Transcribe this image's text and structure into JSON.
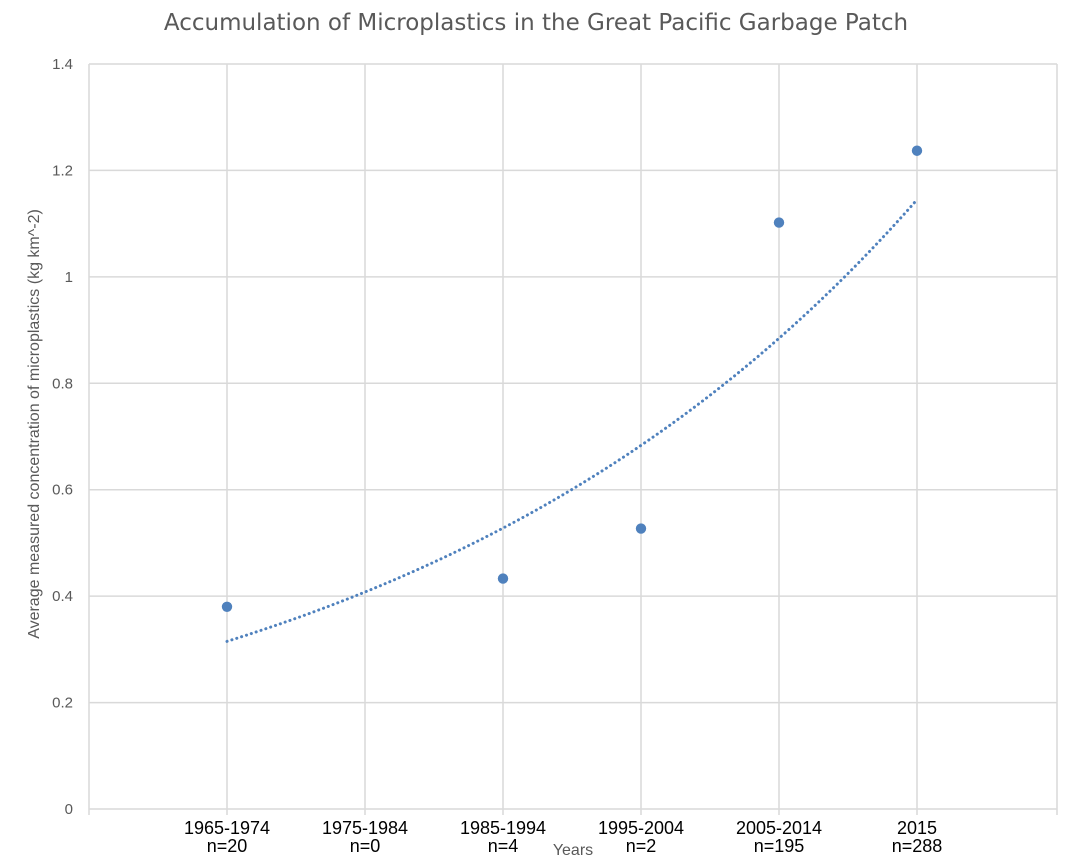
{
  "chart_data": {
    "type": "scatter",
    "title": "Accumulation of Microplastics in the Great Pacific Garbage Patch",
    "xlabel": "Years",
    "ylabel": "Average measured concentration of microplastics (kg km^-2)",
    "categories": [
      {
        "label": "1965-1974",
        "n": "n=20"
      },
      {
        "label": "1975-1984",
        "n": "n=0"
      },
      {
        "label": "1985-1994",
        "n": "n=4"
      },
      {
        "label": "1995-2004",
        "n": "n=2"
      },
      {
        "label": "2005-2014",
        "n": "n=195"
      },
      {
        "label": "2015",
        "n": "n=288"
      }
    ],
    "series": [
      {
        "values": [
          0.38,
          null,
          0.433,
          0.527,
          1.102,
          1.237
        ],
        "color": "#4f81bd"
      }
    ],
    "trendline": {
      "type": "exponential",
      "style": "dotted",
      "color": "#4f81bd",
      "start": 0.315,
      "end": 1.145
    },
    "ylim": [
      0,
      1.4
    ],
    "yticks": [
      "0",
      "0.2",
      "0.4",
      "0.6",
      "0.8",
      "1",
      "1.2",
      "1.4"
    ],
    "grid": true,
    "legend": "none"
  }
}
